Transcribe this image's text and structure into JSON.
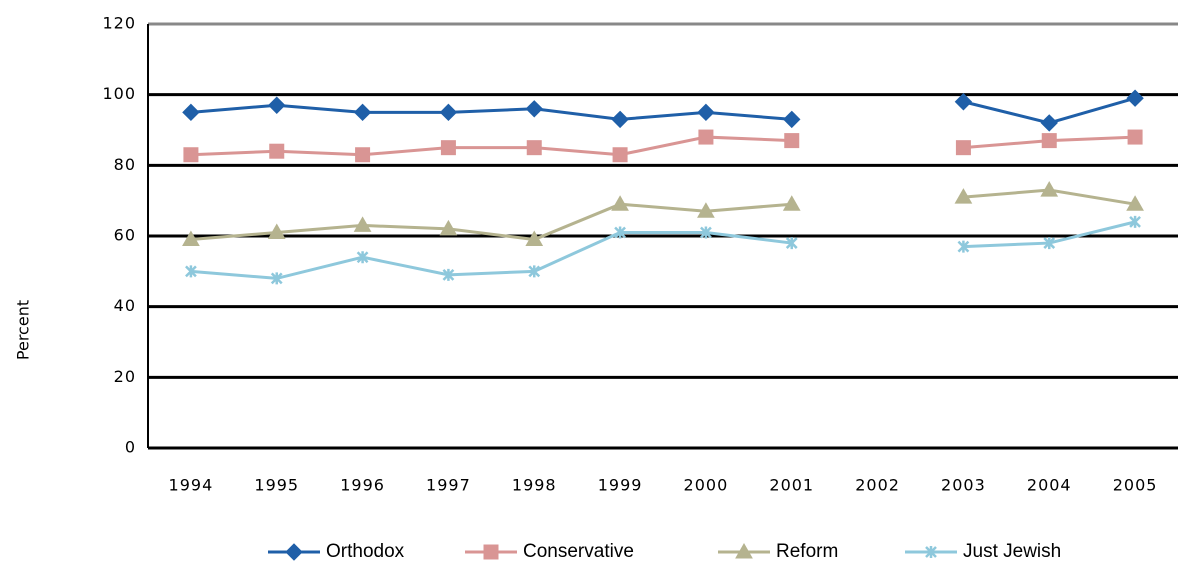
{
  "chart_data": {
    "type": "line",
    "y_label": "Percent",
    "categories": [
      "1994",
      "1995",
      "1996",
      "1997",
      "1998",
      "1999",
      "2000",
      "2001",
      "2002",
      "2003",
      "2004",
      "2005"
    ],
    "series": [
      {
        "name": "Orthodox",
        "color": "#1f5fa8",
        "marker": "diamond",
        "values": [
          95,
          97,
          95,
          95,
          96,
          93,
          95,
          93,
          null,
          98,
          92,
          99
        ]
      },
      {
        "name": "Conservative",
        "color": "#d99594",
        "marker": "square",
        "values": [
          83,
          84,
          83,
          85,
          85,
          83,
          88,
          87,
          null,
          85,
          87,
          88
        ]
      },
      {
        "name": "Reform",
        "color": "#b5b38f",
        "marker": "triangle",
        "values": [
          59,
          61,
          63,
          62,
          59,
          69,
          67,
          69,
          null,
          71,
          73,
          69
        ]
      },
      {
        "name": "Just Jewish",
        "color": "#8ec8dc",
        "marker": "x",
        "values": [
          50,
          48,
          54,
          49,
          50,
          61,
          61,
          58,
          null,
          57,
          58,
          64
        ]
      }
    ],
    "ylim": [
      0,
      120
    ],
    "yticks": [
      0,
      20,
      40,
      60,
      80,
      100,
      120
    ],
    "grid": true,
    "legend": "bottom"
  }
}
